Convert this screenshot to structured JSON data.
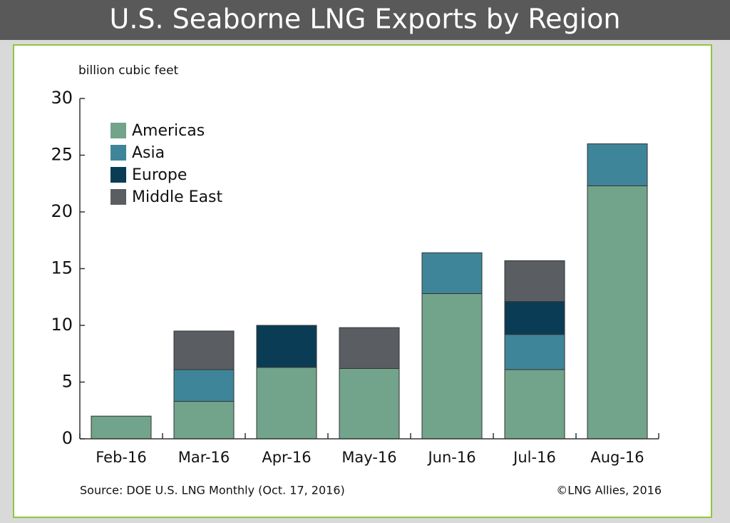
{
  "chart_data": {
    "type": "stacked-bar",
    "title": "U.S. Seaborne LNG Exports by Region",
    "y_axis_label": "billion cubic feet",
    "source": "Source: DOE U.S. LNG Monthly (Oct. 17, 2016)",
    "credit": "©LNG Allies, 2016",
    "categories": [
      "Feb-16",
      "Mar-16",
      "Apr-16",
      "May-16",
      "Jun-16",
      "Jul-16",
      "Aug-16"
    ],
    "series": [
      {
        "name": "Americas",
        "color": "#72a48b",
        "values": [
          2.0,
          3.3,
          6.3,
          6.2,
          12.8,
          6.1,
          22.3
        ]
      },
      {
        "name": "Asia",
        "color": "#3f8599",
        "values": [
          null,
          2.8,
          null,
          null,
          3.6,
          3.1,
          3.7
        ]
      },
      {
        "name": "Europe",
        "color": "#0a3d55",
        "values": [
          null,
          null,
          3.7,
          null,
          null,
          2.9,
          null
        ]
      },
      {
        "name": "Middle East",
        "color": "#5a5e62",
        "values": [
          null,
          3.4,
          null,
          3.6,
          null,
          3.6,
          null
        ]
      }
    ],
    "ylim": [
      0,
      30
    ],
    "yticks": [
      0,
      5,
      10,
      15,
      20,
      25,
      30
    ],
    "legend": "top-left"
  }
}
